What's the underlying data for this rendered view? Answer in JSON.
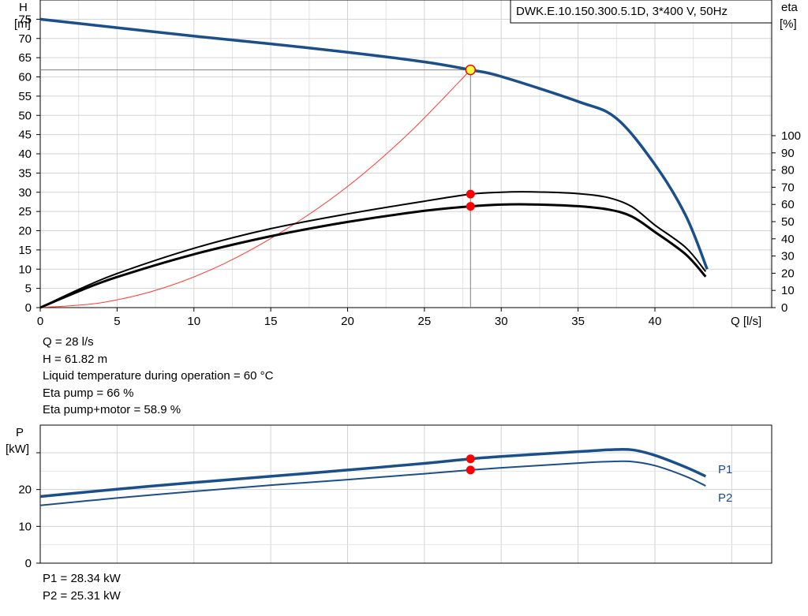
{
  "pump_title": "DWK.E.10.150.300.5.1D, 3*400  V, 50Hz",
  "top_axes": {
    "y_left_label": [
      "H",
      "[m]"
    ],
    "y_right_label": [
      "eta",
      "[%]"
    ],
    "x_label": "Q [l/s]",
    "x_ticks": [
      0,
      5,
      10,
      15,
      20,
      25,
      30,
      35,
      40
    ],
    "y_left_ticks": [
      0,
      5,
      10,
      15,
      20,
      25,
      30,
      35,
      40,
      45,
      50,
      55,
      60,
      65,
      70,
      75
    ],
    "y_right_ticks": [
      0,
      10,
      20,
      30,
      40,
      50,
      60,
      70,
      80,
      90,
      100
    ]
  },
  "bottom_axes": {
    "y_label": [
      "P",
      "[kW]"
    ],
    "y_ticks": [
      0,
      10,
      20
    ],
    "series_labels": [
      "P1",
      "P2"
    ]
  },
  "operating_point_info": [
    "Q = 28 l/s",
    "H = 61.82 m",
    "Liquid temperature during operation = 60 °C",
    "Eta pump = 66 %",
    "Eta pump+motor = 58.9 %"
  ],
  "power_info": [
    "P1 = 28.34 kW",
    "P2 = 25.31 kW"
  ],
  "colors": {
    "head_curve": "#1b4f8a",
    "power_curve": "#1b4f8a",
    "eta_curve": "#000000",
    "system_curve": "#ff3b30",
    "duty_point": "#ff0000",
    "duty_point_head_fill": "#ffff44",
    "grid": "#d3d3d3"
  },
  "chart_data": [
    {
      "type": "line",
      "title": "DWK.E.10.150.300.5.1D, 3*400  V, 50Hz",
      "xlabel": "Q [l/s]",
      "ylabel": "H [m]",
      "y2label": "eta [%]",
      "xlim": [
        0,
        47.6
      ],
      "ylim": [
        0,
        80
      ],
      "y2lim": [
        0,
        100
      ],
      "grid": true,
      "series": [
        {
          "name": "",
          "axis": "H",
          "role": "head",
          "x": [
            0,
            5,
            10,
            15,
            20,
            25,
            28,
            30,
            35,
            37.5,
            40,
            42,
            43.4
          ],
          "y": [
            75,
            72.8,
            70.6,
            68.6,
            66.4,
            63.9,
            61.82,
            60.1,
            53.6,
            49.2,
            37.2,
            24,
            10
          ]
        },
        {
          "name": "",
          "axis": "eta",
          "role": "eta pump",
          "x": [
            0,
            2.5,
            5,
            10,
            15,
            20,
            25,
            28,
            30,
            32,
            35,
            37,
            38.5,
            40,
            42,
            43.3
          ],
          "y": [
            0,
            10.5,
            19.8,
            34.5,
            45.9,
            54.5,
            61.9,
            66,
            67.1,
            67.3,
            66.3,
            63.9,
            58.7,
            48,
            35,
            21
          ]
        },
        {
          "name": "",
          "axis": "eta",
          "role": "eta pump+motor",
          "x": [
            0,
            2.5,
            5,
            10,
            15,
            20,
            25,
            28,
            30,
            32,
            35,
            37,
            38.5,
            40,
            42,
            43.3
          ],
          "y": [
            0,
            9.5,
            17.8,
            31,
            41.5,
            49.8,
            56.3,
            58.9,
            59.9,
            60,
            59,
            57,
            53,
            44,
            31,
            18
          ]
        },
        {
          "name": "",
          "axis": "H",
          "role": "system",
          "x": [
            0,
            4,
            8,
            12,
            16,
            20,
            24,
            28
          ],
          "y": [
            0,
            1.3,
            5.1,
            11.5,
            20.4,
            31.5,
            45.4,
            61.82
          ]
        }
      ],
      "duty_point": {
        "x": 28,
        "y": 61.82
      }
    },
    {
      "type": "line",
      "ylabel": "P [kW]",
      "ylim": [
        0,
        37.5
      ],
      "grid": true,
      "series": [
        {
          "name": "P1",
          "x": [
            0,
            5,
            10,
            15,
            20,
            25,
            28,
            30,
            35,
            37,
            38.5,
            40,
            42,
            43.3
          ],
          "y": [
            18.1,
            20.1,
            21.9,
            23.6,
            25.3,
            27.1,
            28.34,
            29,
            30.3,
            30.8,
            30.8,
            29.3,
            26.1,
            23.6
          ]
        },
        {
          "name": "P2",
          "x": [
            0,
            5,
            10,
            15,
            20,
            25,
            28,
            30,
            35,
            37,
            38.5,
            40,
            42,
            43.3
          ],
          "y": [
            15.7,
            17.7,
            19.5,
            21.2,
            22.7,
            24.3,
            25.31,
            25.9,
            27.2,
            27.6,
            27.6,
            26.5,
            23.6,
            21
          ]
        }
      ],
      "duty_point": {
        "x": 28
      }
    }
  ]
}
